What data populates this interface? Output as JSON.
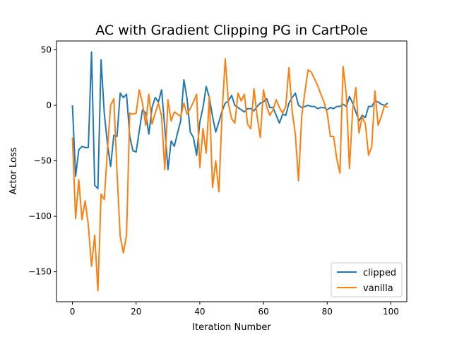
{
  "chart_data": {
    "type": "line",
    "title": "AC with Gradient Clipping PG in CartPole",
    "xlabel": "Iteration Number",
    "ylabel": "Actor Loss",
    "xlim": [
      -5,
      105
    ],
    "ylim": [
      -177,
      58
    ],
    "xticks": [
      0,
      20,
      40,
      60,
      80,
      100
    ],
    "yticks": [
      50,
      0,
      -50,
      -100,
      -150
    ],
    "xtick_labels": [
      "0",
      "20",
      "40",
      "60",
      "80",
      "100"
    ],
    "ytick_labels": [
      "50",
      "0",
      "−50",
      "−100",
      "−150"
    ],
    "grid": false,
    "legend_position": "lower-right",
    "x": [
      0,
      1,
      2,
      3,
      4,
      5,
      6,
      7,
      8,
      9,
      10,
      11,
      12,
      13,
      14,
      15,
      16,
      17,
      18,
      19,
      20,
      21,
      22,
      23,
      24,
      25,
      26,
      27,
      28,
      29,
      30,
      31,
      32,
      33,
      34,
      35,
      36,
      37,
      38,
      39,
      40,
      41,
      42,
      43,
      44,
      45,
      46,
      47,
      48,
      49,
      50,
      51,
      52,
      53,
      54,
      55,
      56,
      57,
      58,
      59,
      60,
      61,
      62,
      63,
      64,
      65,
      66,
      67,
      68,
      69,
      70,
      71,
      72,
      73,
      74,
      75,
      76,
      77,
      78,
      79,
      80,
      81,
      82,
      83,
      84,
      85,
      86,
      87,
      88,
      89,
      90,
      91,
      92,
      93,
      94,
      95,
      96,
      97,
      98,
      99
    ],
    "series": [
      {
        "name": "clipped",
        "color": "#1f77b4",
        "values": [
          0,
          -64,
          -40,
          -37,
          -38,
          -38,
          48,
          -72,
          -75,
          41,
          -7,
          -35,
          -55,
          -27,
          -28,
          11,
          7,
          10,
          -28,
          -41,
          -42,
          -23,
          -4,
          -7,
          -26,
          -2,
          7,
          3,
          14,
          -20,
          -58,
          -32,
          -37,
          -25,
          -14,
          23,
          6,
          -24,
          -29,
          -45,
          -15,
          -2,
          17,
          7,
          -10,
          -24,
          -15,
          -5,
          2,
          4,
          9,
          0,
          -2,
          -4,
          -6,
          -3,
          -3,
          -5,
          -1,
          2,
          3,
          6,
          -2,
          -2,
          -9,
          -16,
          -8,
          -9,
          2,
          7,
          11,
          0,
          -2,
          -1,
          0,
          -1,
          -1,
          -3,
          -2,
          -2,
          -4,
          -2,
          -3,
          -1,
          -1,
          1,
          -1,
          8,
          2,
          -6,
          -14,
          -9,
          -11,
          -1,
          -1,
          4,
          3,
          1,
          0,
          2
        ]
      },
      {
        "name": "vanilla",
        "color": "#ff7f0e",
        "values": [
          -29,
          -102,
          -67,
          -103,
          -86,
          -108,
          -145,
          -117,
          -167,
          -80,
          -85,
          -40,
          0,
          6,
          -60,
          -118,
          -133,
          -117,
          -7,
          -8,
          -7,
          14,
          2,
          -18,
          10,
          -17,
          -7,
          2,
          -10,
          -58,
          5,
          -14,
          -6,
          -8,
          -10,
          2,
          -8,
          -3,
          3,
          10,
          -56,
          -21,
          -43,
          8,
          -74,
          -50,
          -78,
          -7,
          42,
          1,
          -12,
          -16,
          11,
          4,
          10,
          -17,
          -21,
          15,
          -10,
          -29,
          14,
          -1,
          -9,
          -4,
          5,
          -2,
          -7,
          -1,
          34,
          -5,
          -26,
          -68,
          -10,
          12,
          32,
          30,
          24,
          18,
          10,
          3,
          -7,
          -28,
          -28,
          -48,
          -61,
          35,
          10,
          -57,
          -4,
          16,
          -25,
          -10,
          -17,
          -45,
          -37,
          13,
          -18,
          -10,
          0,
          -2
        ]
      }
    ]
  }
}
